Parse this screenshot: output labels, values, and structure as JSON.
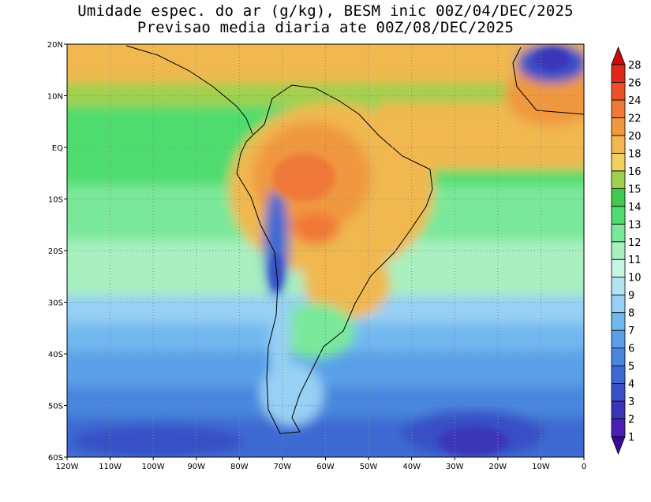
{
  "title": {
    "line1": "Umidade espec. do ar (g/kg), BESM inic 00Z/04/DEC/2025",
    "line2": "Previsao media diaria ate 00Z/08/DEC/2025"
  },
  "map": {
    "lon_range": [
      -120,
      0
    ],
    "lat_range": [
      -60,
      20
    ],
    "x_ticks": [
      {
        "value": -120,
        "label": "120W"
      },
      {
        "value": -110,
        "label": "110W"
      },
      {
        "value": -100,
        "label": "100W"
      },
      {
        "value": -90,
        "label": "90W"
      },
      {
        "value": -80,
        "label": "80W"
      },
      {
        "value": -70,
        "label": "70W"
      },
      {
        "value": -60,
        "label": "60W"
      },
      {
        "value": -50,
        "label": "50W"
      },
      {
        "value": -40,
        "label": "40W"
      },
      {
        "value": -30,
        "label": "30W"
      },
      {
        "value": -20,
        "label": "20W"
      },
      {
        "value": -10,
        "label": "10W"
      },
      {
        "value": 0,
        "label": "0"
      }
    ],
    "y_ticks": [
      {
        "value": 20,
        "label": "20N"
      },
      {
        "value": 10,
        "label": "10N"
      },
      {
        "value": 0,
        "label": "EQ"
      },
      {
        "value": -10,
        "label": "10S"
      },
      {
        "value": -20,
        "label": "20S"
      },
      {
        "value": -30,
        "label": "30S"
      },
      {
        "value": -40,
        "label": "40S"
      },
      {
        "value": -50,
        "label": "50S"
      },
      {
        "value": -60,
        "label": "60S"
      }
    ],
    "grid_lines": "dotted"
  },
  "colorbar": {
    "levels": [
      "1",
      "2",
      "3",
      "4",
      "5",
      "6",
      "7",
      "8",
      "9",
      "10",
      "11",
      "12",
      "13",
      "14",
      "15",
      "16",
      "18",
      "20",
      "22",
      "24",
      "26",
      "28"
    ],
    "colors": [
      "#3c0896",
      "#4a1fb0",
      "#3a34b8",
      "#3850c6",
      "#3c6ad2",
      "#4a86de",
      "#5aa0e8",
      "#72b8ef",
      "#96d0f4",
      "#b4e4f2",
      "#c8f4e4",
      "#a8f0c0",
      "#7ae89a",
      "#50dc6e",
      "#40c850",
      "#a0d050",
      "#f0d060",
      "#f0b850",
      "#f09840",
      "#f07838",
      "#f05028",
      "#e02818",
      "#c80a0a"
    ]
  }
}
